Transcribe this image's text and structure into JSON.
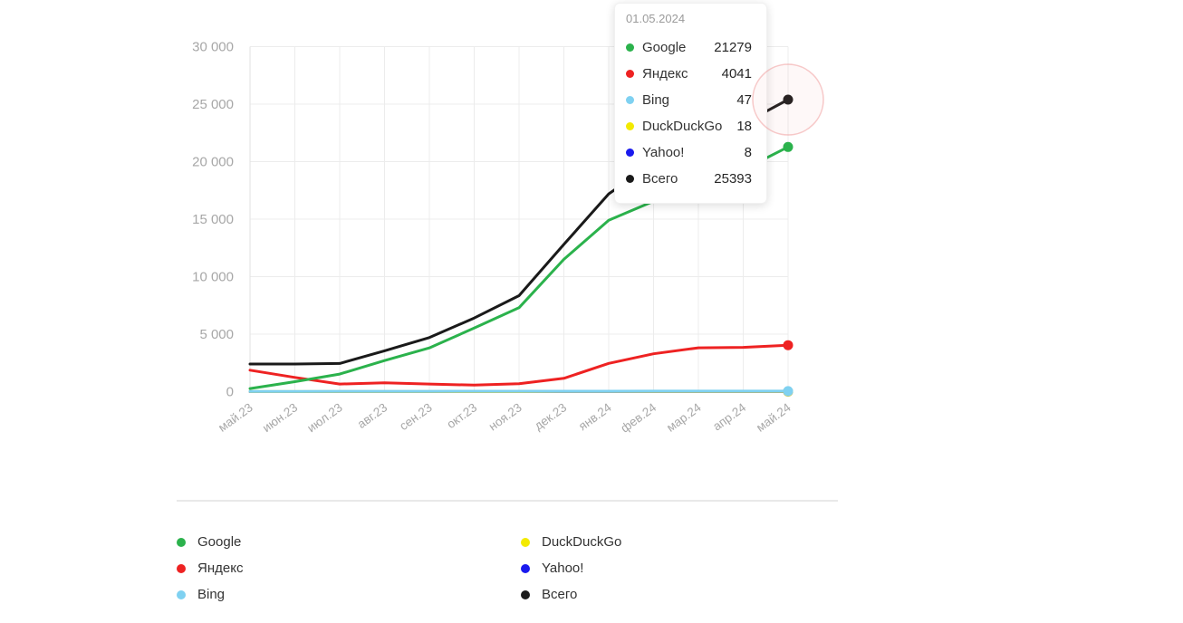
{
  "tooltip": {
    "date": "01.05.2024",
    "rows": [
      {
        "key": "google",
        "name": "Google",
        "value": "21279",
        "color": "#2bb24c"
      },
      {
        "key": "yandex",
        "name": "Яндекс",
        "value": "4041",
        "color": "#ee2222"
      },
      {
        "key": "bing",
        "name": "Bing",
        "value": "47",
        "color": "#7fd1f1"
      },
      {
        "key": "duckduckgo",
        "name": "DuckDuckGo",
        "value": "18",
        "color": "#f3ea00"
      },
      {
        "key": "yahoo",
        "name": "Yahoo!",
        "value": "8",
        "color": "#1a1aee"
      },
      {
        "key": "total",
        "name": "Всего",
        "value": "25393",
        "color": "#1a1a1a"
      }
    ]
  },
  "legend": {
    "columns": [
      [
        {
          "key": "google",
          "label": "Google",
          "color": "#2bb24c"
        },
        {
          "key": "yandex",
          "label": "Яндекс",
          "color": "#ee2222"
        },
        {
          "key": "bing",
          "label": "Bing",
          "color": "#7fd1f1"
        }
      ],
      [
        {
          "key": "duckduckgo",
          "label": "DuckDuckGo",
          "color": "#f3ea00"
        },
        {
          "key": "yahoo",
          "label": "Yahoo!",
          "color": "#1a1aee"
        },
        {
          "key": "total",
          "label": "Всего",
          "color": "#1a1a1a"
        }
      ]
    ]
  },
  "chart_data": {
    "type": "line",
    "title": "",
    "xlabel": "",
    "ylabel": "",
    "x_labels": [
      "май.23",
      "июн.23",
      "июл.23",
      "авг.23",
      "сен.23",
      "окт.23",
      "ноя.23",
      "дек.23",
      "янв.24",
      "фев.24",
      "мар.24",
      "апр.24",
      "май.24"
    ],
    "ylim": [
      0,
      30000
    ],
    "yticks": [
      {
        "value": 0,
        "label": "0"
      },
      {
        "value": 5000,
        "label": "5 000"
      },
      {
        "value": 10000,
        "label": "10 000"
      },
      {
        "value": 15000,
        "label": "15 000"
      },
      {
        "value": 20000,
        "label": "20 000"
      },
      {
        "value": 25000,
        "label": "25 000"
      },
      {
        "value": 30000,
        "label": "30 000"
      }
    ],
    "grid": true,
    "legend_position": "bottom",
    "series": [
      {
        "key": "google",
        "name": "Google",
        "color": "#2bb24c",
        "values": [
          270,
          870,
          1530,
          2700,
          3800,
          5530,
          7300,
          11500,
          14900,
          16550,
          17900,
          19300,
          21279
        ]
      },
      {
        "key": "yandex",
        "name": "Яндекс",
        "color": "#ee2222",
        "values": [
          1870,
          1240,
          660,
          760,
          660,
          570,
          690,
          1160,
          2460,
          3290,
          3810,
          3850,
          4041
        ]
      },
      {
        "key": "bing",
        "name": "Bing",
        "color": "#7fd1f1",
        "values": [
          25,
          27,
          30,
          32,
          34,
          36,
          39,
          41,
          43,
          44,
          45,
          46,
          47
        ]
      },
      {
        "key": "duckduckgo",
        "name": "DuckDuckGo",
        "color": "#f3ea00",
        "values": [
          4,
          5,
          6,
          7,
          9,
          10,
          11,
          12,
          14,
          15,
          16,
          17,
          18
        ]
      },
      {
        "key": "yahoo",
        "name": "Yahoo!",
        "color": "#1a1aee",
        "values": [
          1,
          1,
          2,
          2,
          3,
          4,
          4,
          5,
          6,
          6,
          7,
          7,
          8
        ]
      },
      {
        "key": "total",
        "name": "Всего",
        "color": "#1a1a1a",
        "values": [
          2400,
          2400,
          2450,
          3550,
          4700,
          6400,
          8350,
          12800,
          17200,
          19900,
          21800,
          23300,
          25393
        ]
      }
    ],
    "draw_order": [
      "yahoo",
      "duckduckgo",
      "bing",
      "yandex",
      "google",
      "total"
    ],
    "highlight": {
      "x_index": 12,
      "date": "01.05.2024",
      "ring_series": "total",
      "ring_color": "#f09696"
    }
  },
  "colors": {
    "grid": "#ececec",
    "axis_border": "#e2e2e2",
    "tick_text": "#a7a7a7",
    "tooltip_date": "#9b9b9b",
    "text": "#333333"
  }
}
